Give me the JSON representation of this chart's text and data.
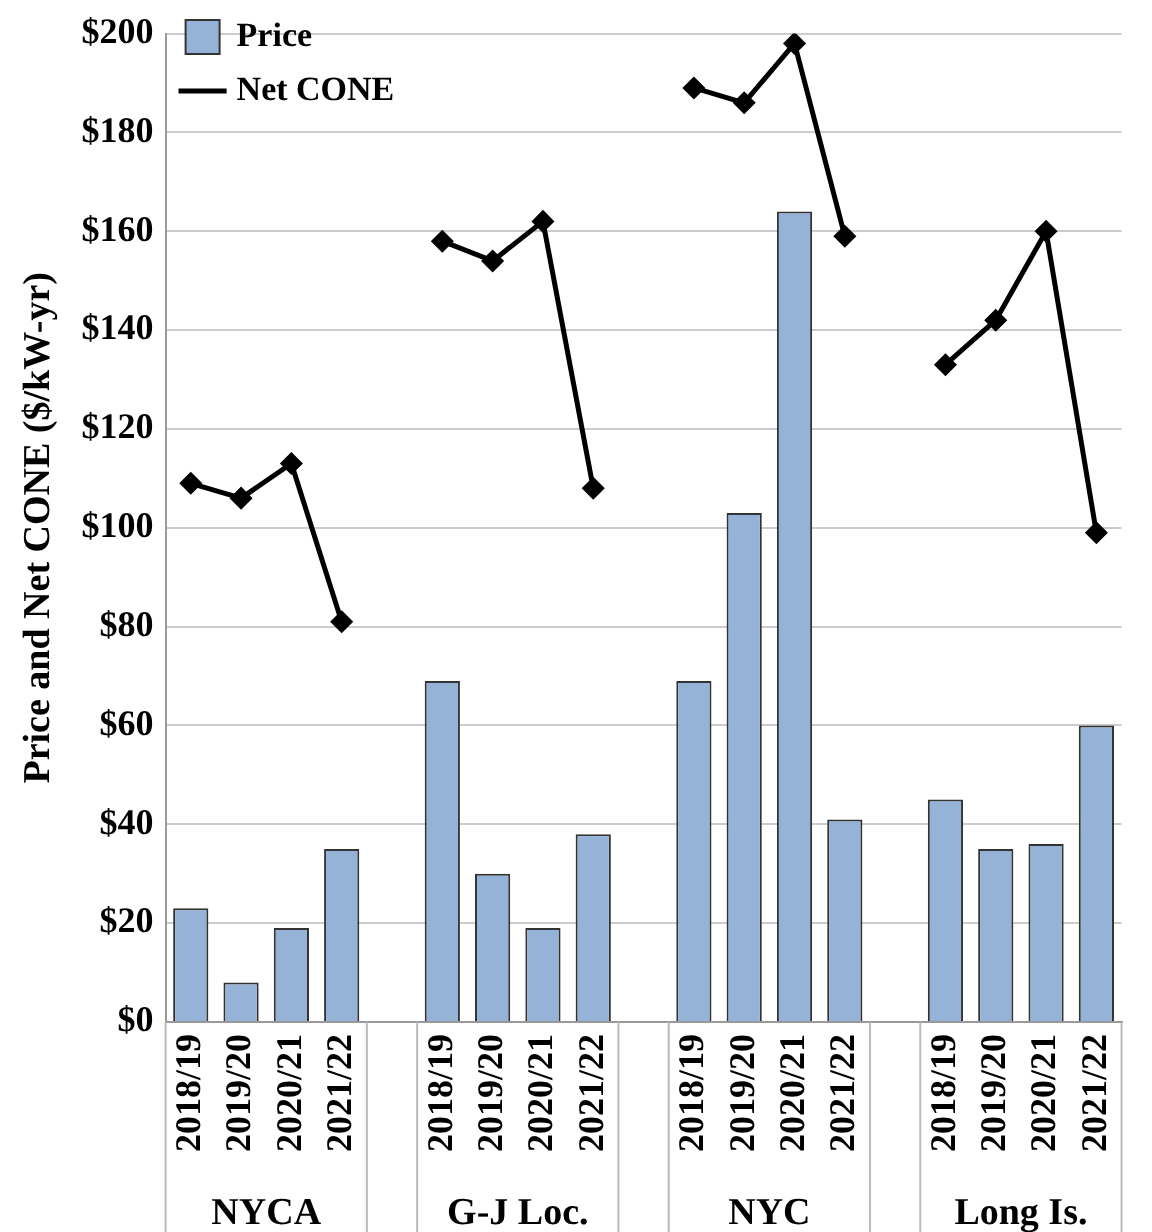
{
  "chart_data": {
    "type": "bar",
    "ylabel": "Price and Net CONE ($/kW-yr)",
    "categories": [
      "2018/19",
      "2019/20",
      "2020/21",
      "2021/22",
      null,
      "2018/19",
      "2019/20",
      "2020/21",
      "2021/22",
      null,
      "2018/19",
      "2019/20",
      "2020/21",
      "2021/22",
      null,
      "2018/19",
      "2019/20",
      "2020/21",
      "2021/22"
    ],
    "series": [
      {
        "name": "Price",
        "color": "#95b3d7",
        "values": [
          23,
          8,
          19,
          35,
          null,
          69,
          30,
          19,
          38,
          null,
          69,
          103,
          164,
          41,
          null,
          45,
          35,
          36,
          60
        ]
      },
      {
        "name": "Net CONE",
        "type": "line",
        "color": "#000000",
        "values": [
          109,
          106,
          113,
          81,
          null,
          158,
          154,
          162,
          108,
          null,
          189,
          186,
          198,
          159,
          null,
          133,
          142,
          160,
          99
        ]
      }
    ],
    "annotations": [
      "NYCA",
      "G-J Loc.",
      "NYC",
      "Long Is."
    ],
    "ylim": [
      0,
      200
    ],
    "yticks": [
      {
        "value": 0,
        "label": "$0"
      },
      {
        "value": 20,
        "label": "$20"
      },
      {
        "value": 40,
        "label": "$40"
      },
      {
        "value": 60,
        "label": "$60"
      },
      {
        "value": 80,
        "label": "$80"
      },
      {
        "value": 100,
        "label": "$100"
      },
      {
        "value": 120,
        "label": "$120"
      },
      {
        "value": 140,
        "label": "$140"
      },
      {
        "value": 160,
        "label": "$160"
      },
      {
        "value": 180,
        "label": "$180"
      },
      {
        "value": 200,
        "label": "$200"
      }
    ],
    "grid": "y",
    "legend": "top left",
    "marker": "diamond",
    "line_style": "solid"
  }
}
